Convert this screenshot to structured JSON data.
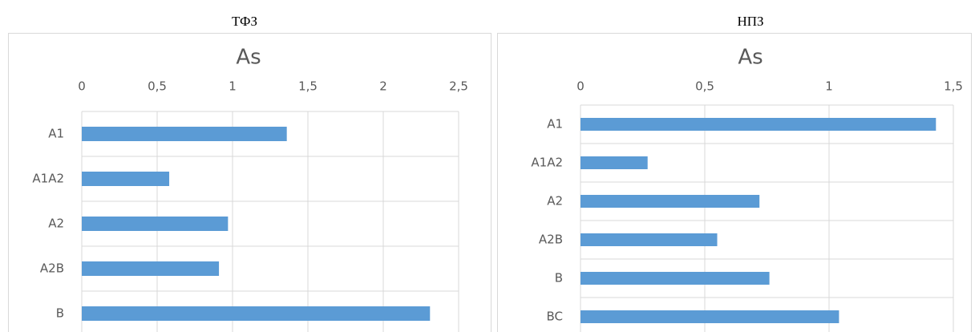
{
  "chart_data": [
    {
      "type": "bar",
      "orientation": "horizontal",
      "caption": "ТФЗ",
      "title": "As",
      "categories": [
        "A1",
        "A1A2",
        "A2",
        "A2B",
        "B"
      ],
      "values": [
        1.36,
        0.58,
        0.97,
        0.91,
        2.31
      ],
      "color": "#5b9bd5",
      "xlim": [
        0,
        2.5
      ],
      "xticks": [
        0,
        {
          "value": 0.5,
          "label": "0,5"
        },
        1,
        {
          "value": 1.5,
          "label": "1,5"
        },
        2,
        {
          "value": 2.5,
          "label": "2,5"
        }
      ],
      "grid": true
    },
    {
      "type": "bar",
      "orientation": "horizontal",
      "caption": "НПЗ",
      "title": "As",
      "categories": [
        "A1",
        "A1A2",
        "A2",
        "A2B",
        "B",
        "BC"
      ],
      "values": [
        1.43,
        0.27,
        0.72,
        0.55,
        0.76,
        1.04
      ],
      "color": "#5b9bd5",
      "xlim": [
        0,
        1.5
      ],
      "xticks": [
        0,
        {
          "value": 0.5,
          "label": "0,5"
        },
        1,
        {
          "value": 1.5,
          "label": "1,5"
        }
      ],
      "grid": true
    }
  ]
}
